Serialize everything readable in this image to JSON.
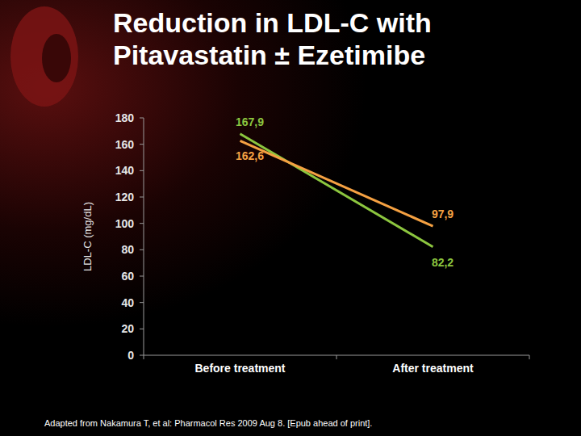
{
  "chart_data": {
    "type": "line",
    "title": "Reduction in LDL-C with Pitavastatin ± Ezetimibe",
    "y_label": "LDL-C (mg/dL)",
    "annotations": [
      "Adapted from Nakamura T, et al: Pharmacol Res 2009 Aug 8. [Epub ahead of print]."
    ],
    "categories": [
      "Before treatment",
      "After treatment"
    ],
    "series": [
      {
        "color": "#8cc63f",
        "values": [
          167.9,
          82.2
        ],
        "value_labels": [
          "167,9",
          "82,2"
        ]
      },
      {
        "color": "#f5a142",
        "values": [
          162.6,
          97.9
        ],
        "value_labels": [
          "162,6",
          "97,9"
        ]
      }
    ],
    "ylim": [
      0,
      180
    ],
    "yticks": [
      0,
      20,
      40,
      60,
      80,
      100,
      120,
      140,
      160,
      180
    ],
    "grid": false,
    "data_labels": true
  }
}
